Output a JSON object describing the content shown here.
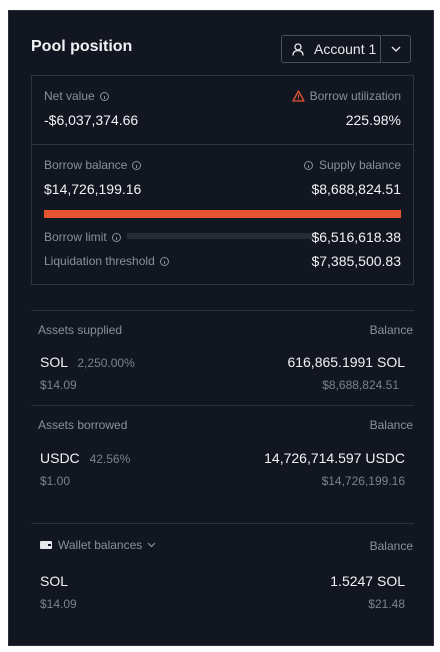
{
  "header": {
    "title": "Pool position",
    "account_label": "Account 1"
  },
  "summary": {
    "net_value_label": "Net value",
    "net_value": "-$6,037,374.66",
    "borrow_util_label": "Borrow utilization",
    "borrow_util": "225.98%",
    "borrow_balance_label": "Borrow balance",
    "borrow_balance": "$14,726,199.16",
    "supply_balance_label": "Supply balance",
    "supply_balance": "$8,688,824.51",
    "borrow_fill_fraction": 1.0,
    "borrow_limit_label": "Borrow limit",
    "borrow_limit": "$6,516,618.38",
    "liq_threshold_label": "Liquidation threshold",
    "liq_threshold": "$7,385,500.83",
    "bar_color": "#e4552f",
    "warning_color": "#e4552f"
  },
  "supplied": {
    "heading": "Assets supplied",
    "balance_heading": "Balance",
    "items": [
      {
        "symbol": "SOL",
        "pct": "2,250.00%",
        "price": "$14.09",
        "amount": "616,865.1991 SOL",
        "usd": "$8,688,824.51"
      }
    ]
  },
  "borrowed": {
    "heading": "Assets borrowed",
    "balance_heading": "Balance",
    "items": [
      {
        "symbol": "USDC",
        "pct": "42.56%",
        "price": "$1.00",
        "amount": "14,726,714.597 USDC",
        "usd": "$14,726,199.16"
      }
    ]
  },
  "wallet": {
    "heading": "Wallet balances",
    "balance_heading": "Balance",
    "items": [
      {
        "symbol": "SOL",
        "price": "$14.09",
        "amount": "1.5247 SOL",
        "usd": "$21.48"
      }
    ]
  },
  "icons": {
    "user": "user-icon",
    "chevron": "chevron-down-icon",
    "info": "info-icon",
    "warning": "warning-icon",
    "wallet": "wallet-icon"
  }
}
